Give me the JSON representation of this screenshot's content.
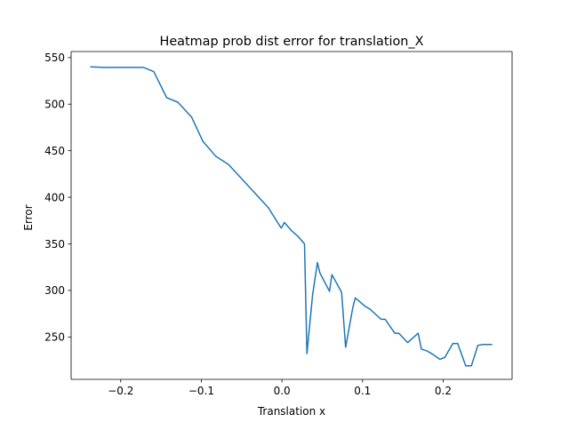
{
  "chart_data": {
    "type": "line",
    "title": "Heatmap prob dist error for translation_X",
    "xlabel": "Translation x",
    "ylabel": "Error",
    "xlim": [
      -0.2615,
      0.2855
    ],
    "ylim": [
      204.5,
      556.5
    ],
    "xticks": [
      -0.2,
      -0.1,
      0.0,
      0.1,
      0.2
    ],
    "xtick_labels": [
      "−0.2",
      "−0.1",
      "0.0",
      "0.1",
      "0.2"
    ],
    "yticks": [
      250,
      300,
      350,
      400,
      450,
      500,
      550
    ],
    "ytick_labels": [
      "250",
      "300",
      "350",
      "400",
      "450",
      "500",
      "550"
    ],
    "grid": false,
    "series": [
      {
        "name": "",
        "color": "#1f77b4",
        "x": [
          -0.237,
          -0.22,
          -0.172,
          -0.159,
          -0.143,
          -0.129,
          -0.112,
          -0.098,
          -0.082,
          -0.066,
          -0.049,
          -0.033,
          -0.017,
          -0.001,
          0.0,
          0.003,
          0.012,
          0.02,
          0.028,
          0.031,
          0.038,
          0.044,
          0.047,
          0.059,
          0.062,
          0.074,
          0.079,
          0.088,
          0.091,
          0.103,
          0.109,
          0.123,
          0.128,
          0.14,
          0.145,
          0.156,
          0.169,
          0.173,
          0.18,
          0.186,
          0.196,
          0.202,
          0.212,
          0.218,
          0.228,
          0.235,
          0.243,
          0.25,
          0.26
        ],
        "y": [
          540,
          539.5,
          539.5,
          535,
          507,
          502,
          486,
          460,
          444,
          435,
          419,
          404,
          389,
          367,
          368,
          373,
          364,
          358,
          350,
          232,
          295,
          330,
          319,
          299,
          317,
          298,
          239,
          282,
          292,
          283,
          280,
          269,
          269,
          254,
          254,
          244,
          254,
          237,
          235,
          232,
          226,
          228,
          243,
          243,
          219,
          219,
          241,
          242,
          242
        ]
      }
    ]
  }
}
